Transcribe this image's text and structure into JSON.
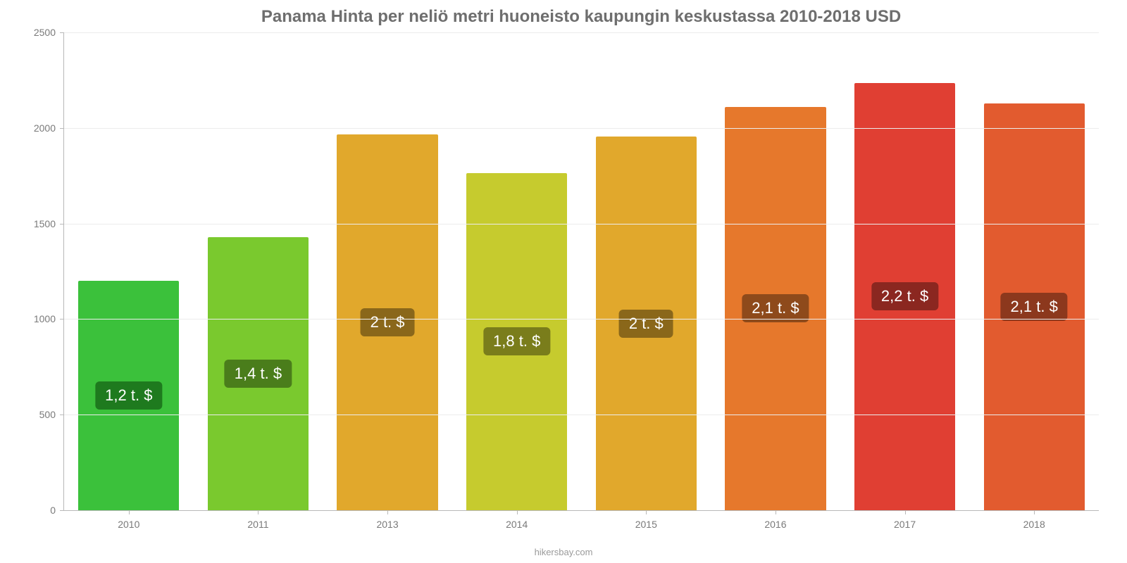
{
  "chart": {
    "type": "bar",
    "title": "Panama Hinta per neliö metri huoneisto kaupungin keskustassa 2010-2018 USD",
    "title_fontsize": 24,
    "title_color": "#6e6e6e",
    "background_color": "#ffffff",
    "grid_color": "#ececec",
    "axis_color": "#b8b8b8",
    "tick_label_color": "#7a7a7a",
    "tick_fontsize": 14,
    "ylim": [
      0,
      2500
    ],
    "ytick_step": 500,
    "yticks": [
      0,
      500,
      1000,
      1500,
      2000,
      2500
    ],
    "bar_width_pct": 78,
    "label_fontsize": 22,
    "label_text_color": "#ffffff",
    "categories": [
      "2010",
      "2011",
      "2013",
      "2014",
      "2015",
      "2016",
      "2017",
      "2018"
    ],
    "values": [
      1200,
      1430,
      1965,
      1765,
      1955,
      2110,
      2235,
      2130
    ],
    "value_labels": [
      "1,2 t. $",
      "1,4 t. $",
      "2 t. $",
      "1,8 t. $",
      "2 t. $",
      "2,1 t. $",
      "2,2 t. $",
      "2,1 t. $"
    ],
    "bar_colors": [
      "#3bc13b",
      "#7ac92e",
      "#e1a82c",
      "#c6cb2e",
      "#e1a82c",
      "#e6782c",
      "#e03f33",
      "#e25b2f"
    ],
    "badge_colors": [
      "#1e7a1e",
      "#4a7d1b",
      "#8a671a",
      "#7a7d1b",
      "#8a671a",
      "#8e4a1b",
      "#8b2720",
      "#8c381d"
    ],
    "source": "hikersbay.com"
  }
}
